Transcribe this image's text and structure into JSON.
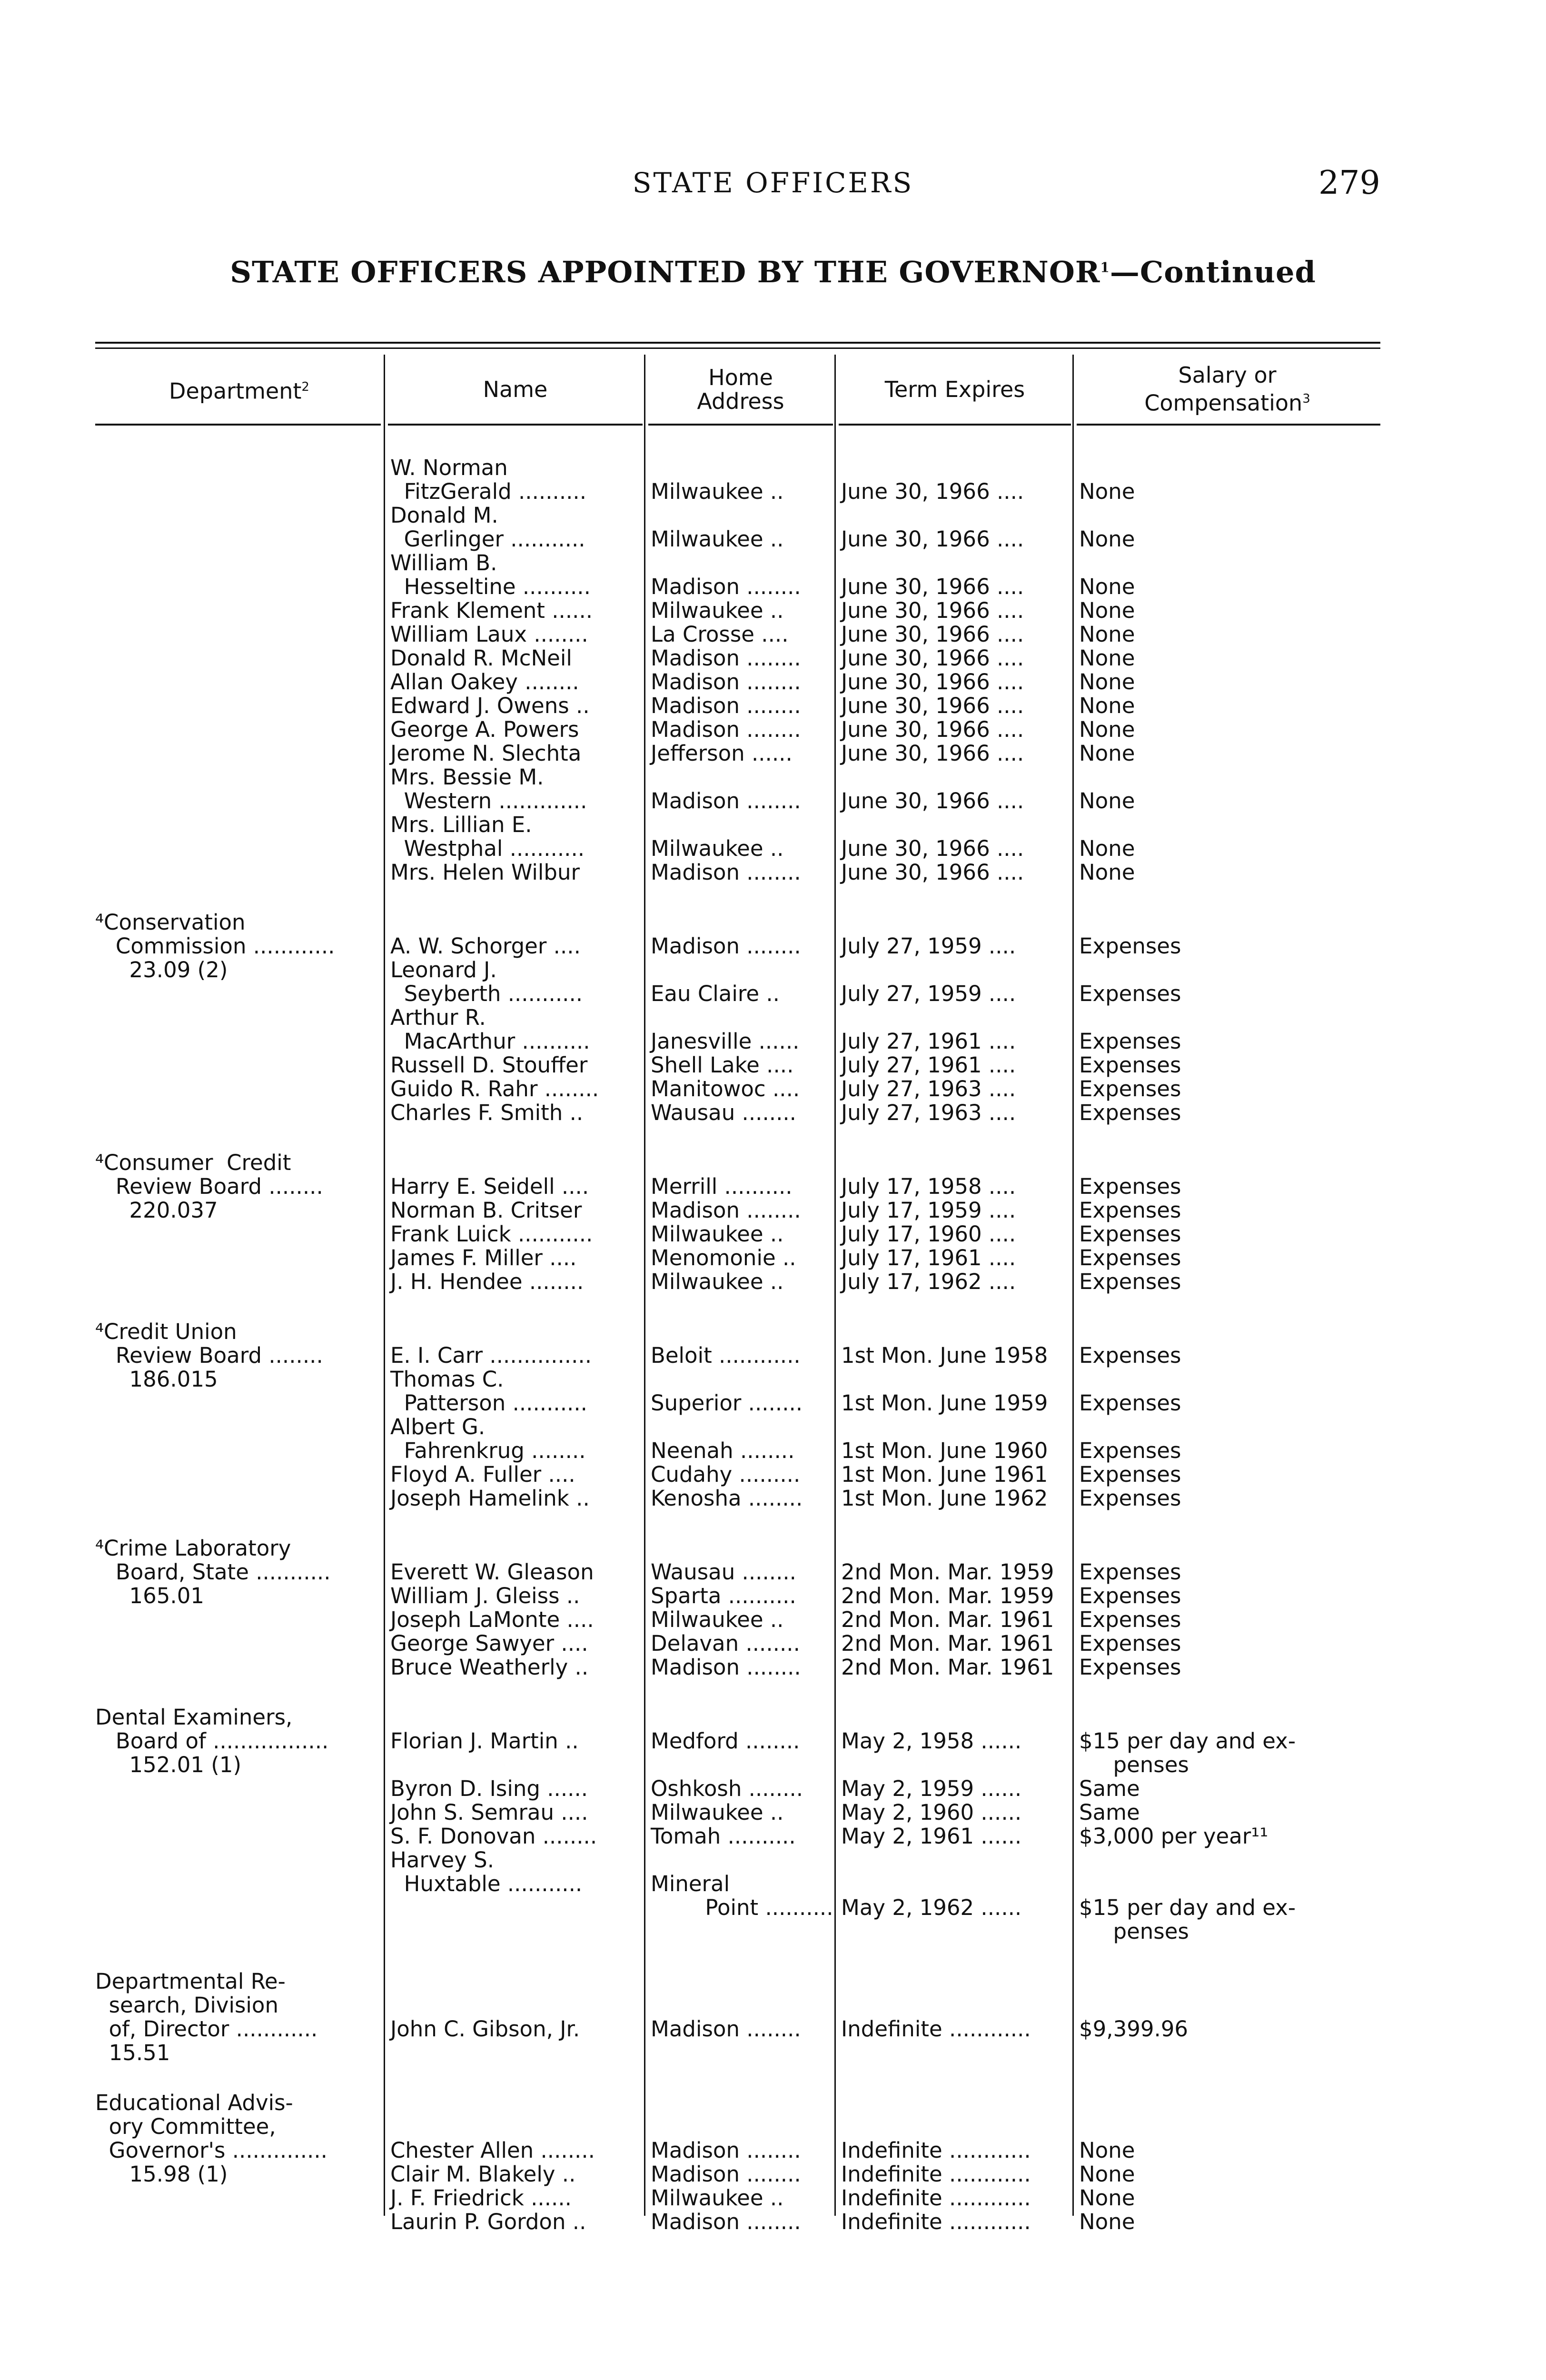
{
  "running_head": "STATE OFFICERS",
  "page_number": "279",
  "title": "STATE OFFICERS APPOINTED BY THE GOVERNOR",
  "title_footnote": "1",
  "title_suffix": "—Continued",
  "headers": {
    "department": "Department",
    "department_note": "2",
    "name": "Name",
    "home_address_1": "Home",
    "home_address_2": "Address",
    "term": "Term Expires",
    "salary_1": "Salary or",
    "salary_2": "Compensation",
    "salary_note": "3"
  },
  "groups": [
    {
      "lines": [
        [
          "",
          "W. Norman",
          "",
          "",
          ""
        ],
        [
          "",
          "  FitzGerald ..........",
          "Milwaukee ..",
          "June 30, 1966 ....",
          "None"
        ],
        [
          "",
          "Donald M.",
          "",
          "",
          ""
        ],
        [
          "",
          "  Gerlinger ...........",
          "Milwaukee ..",
          "June 30, 1966 ....",
          "None"
        ],
        [
          "",
          "William B.",
          "",
          "",
          ""
        ],
        [
          "",
          "  Hesseltine ..........",
          "Madison ........",
          "June 30, 1966 ....",
          "None"
        ],
        [
          "",
          "Frank Klement ......",
          "Milwaukee ..",
          "June 30, 1966 ....",
          "None"
        ],
        [
          "",
          "William Laux ........",
          "La Crosse ....",
          "June 30, 1966 ....",
          "None"
        ],
        [
          "",
          "Donald R. McNeil",
          "Madison ........",
          "June 30, 1966 ....",
          "None"
        ],
        [
          "",
          "Allan Oakey ........",
          "Madison ........",
          "June 30, 1966 ....",
          "None"
        ],
        [
          "",
          "Edward J. Owens ..",
          "Madison ........",
          "June 30, 1966 ....",
          "None"
        ],
        [
          "",
          "George A. Powers",
          "Madison ........",
          "June 30, 1966 ....",
          "None"
        ],
        [
          "",
          "Jerome N. Slechta",
          "Jefferson ......",
          "June 30, 1966 ....",
          "None"
        ],
        [
          "",
          "Mrs. Bessie M.",
          "",
          "",
          ""
        ],
        [
          "",
          "  Western .............",
          "Madison ........",
          "June 30, 1966 ....",
          "None"
        ],
        [
          "",
          "Mrs. Lillian E.",
          "",
          "",
          ""
        ],
        [
          "",
          "  Westphal ...........",
          "Milwaukee ..",
          "June 30, 1966 ....",
          "None"
        ],
        [
          "",
          "Mrs. Helen Wilbur",
          "Madison ........",
          "June 30, 1966 ....",
          "None"
        ]
      ]
    },
    {
      "lines": [
        [
          "⁴Conservation",
          "",
          "",
          "",
          ""
        ],
        [
          "   Commission ............",
          "A. W. Schorger ....",
          "Madison ........",
          "July 27, 1959 ....",
          "Expenses"
        ],
        [
          "     23.09 (2)",
          "Leonard J.",
          "",
          "",
          ""
        ],
        [
          "",
          "  Seyberth ...........",
          "Eau Claire ..",
          "July 27, 1959 ....",
          "Expenses"
        ],
        [
          "",
          "Arthur R.",
          "",
          "",
          ""
        ],
        [
          "",
          "  MacArthur ..........",
          "Janesville ......",
          "July 27, 1961 ....",
          "Expenses"
        ],
        [
          "",
          "Russell D. Stouffer",
          "Shell Lake ....",
          "July 27, 1961 ....",
          "Expenses"
        ],
        [
          "",
          "Guido R. Rahr ........",
          "Manitowoc ....",
          "July 27, 1963 ....",
          "Expenses"
        ],
        [
          "",
          "Charles F. Smith ..",
          "Wausau ........",
          "July 27, 1963 ....",
          "Expenses"
        ]
      ]
    },
    {
      "lines": [
        [
          "⁴Consumer  Credit",
          "",
          "",
          "",
          ""
        ],
        [
          "   Review Board ........",
          "Harry E. Seidell ....",
          "Merrill ..........",
          "July 17, 1958 ....",
          "Expenses"
        ],
        [
          "     220.037",
          "Norman B. Critser",
          "Madison ........",
          "July 17, 1959 ....",
          "Expenses"
        ],
        [
          "",
          "Frank Luick ...........",
          "Milwaukee ..",
          "July 17, 1960 ....",
          "Expenses"
        ],
        [
          "",
          "James F. Miller ....",
          "Menomonie ..",
          "July 17, 1961 ....",
          "Expenses"
        ],
        [
          "",
          "J. H. Hendee ........",
          "Milwaukee ..",
          "July 17, 1962 ....",
          "Expenses"
        ]
      ]
    },
    {
      "lines": [
        [
          "⁴Credit Union",
          "",
          "",
          "",
          ""
        ],
        [
          "   Review Board ........",
          "E. I. Carr ...............",
          "Beloit ............",
          "1st Mon. June 1958",
          "Expenses"
        ],
        [
          "     186.015",
          "Thomas C.",
          "",
          "",
          ""
        ],
        [
          "",
          "  Patterson ...........",
          "Superior ........",
          "1st Mon. June 1959",
          "Expenses"
        ],
        [
          "",
          "Albert G.",
          "",
          "",
          ""
        ],
        [
          "",
          "  Fahrenkrug ........",
          "Neenah ........",
          "1st Mon. June 1960",
          "Expenses"
        ],
        [
          "",
          "Floyd A. Fuller ....",
          "Cudahy .........",
          "1st Mon. June 1961",
          "Expenses"
        ],
        [
          "",
          "Joseph Hamelink ..",
          "Kenosha ........",
          "1st Mon. June 1962",
          "Expenses"
        ]
      ]
    },
    {
      "lines": [
        [
          "⁴Crime Laboratory",
          "",
          "",
          "",
          ""
        ],
        [
          "   Board, State ...........",
          "Everett W. Gleason",
          "Wausau ........",
          "2nd Mon. Mar. 1959",
          "Expenses"
        ],
        [
          "     165.01",
          "William J. Gleiss ..",
          "Sparta ..........",
          "2nd Mon. Mar. 1959",
          "Expenses"
        ],
        [
          "",
          "Joseph LaMonte ....",
          "Milwaukee ..",
          "2nd Mon. Mar. 1961",
          "Expenses"
        ],
        [
          "",
          "George Sawyer ....",
          "Delavan ........",
          "2nd Mon. Mar. 1961",
          "Expenses"
        ],
        [
          "",
          "Bruce Weatherly ..",
          "Madison ........",
          "2nd Mon. Mar. 1961",
          "Expenses"
        ]
      ]
    },
    {
      "lines": [
        [
          "Dental Examiners,",
          "",
          "",
          "",
          ""
        ],
        [
          "   Board of .................",
          "Florian J. Martin ..",
          "Medford ........",
          "May 2, 1958 ......",
          "$15 per day and ex-"
        ],
        [
          "     152.01 (1)",
          "",
          "",
          "",
          "     penses"
        ],
        [
          "",
          "Byron D. Ising ......",
          "Oshkosh ........",
          "May 2, 1959 ......",
          "Same"
        ],
        [
          "",
          "John S. Semrau ....",
          "Milwaukee ..",
          "May 2, 1960 ......",
          "Same"
        ],
        [
          "",
          "S. F. Donovan ........",
          "Tomah ..........",
          "May 2, 1961 ......",
          "$3,000 per year¹¹"
        ],
        [
          "",
          "Harvey S.",
          "",
          "",
          ""
        ],
        [
          "",
          "  Huxtable ...........",
          "Mineral",
          "",
          ""
        ],
        [
          "",
          "",
          "        Point ..........",
          "May 2, 1962 ......",
          "$15 per day and ex-"
        ],
        [
          "",
          "",
          "",
          "",
          "     penses"
        ]
      ]
    },
    {
      "lines": [
        [
          "Departmental Re-",
          "",
          "",
          "",
          ""
        ],
        [
          "  search, Division",
          "",
          "",
          "",
          ""
        ],
        [
          "  of, Director ............",
          "John C. Gibson, Jr.",
          "Madison ........",
          "Indefinite ............",
          "$9,399.96"
        ],
        [
          "  15.51",
          "",
          "",
          "",
          ""
        ]
      ]
    },
    {
      "lines": [
        [
          "Educational Advis-",
          "",
          "",
          "",
          ""
        ],
        [
          "  ory Committee,",
          "",
          "",
          "",
          ""
        ],
        [
          "  Governor's ..............",
          "Chester Allen ........",
          "Madison ........",
          "Indefinite ............",
          "None"
        ],
        [
          "     15.98 (1)",
          "Clair M. Blakely ..",
          "Madison ........",
          "Indefinite ............",
          "None"
        ],
        [
          "",
          "J. F. Friedrick ......",
          "Milwaukee ..",
          "Indefinite ............",
          "None"
        ],
        [
          "",
          "Laurin P. Gordon ..",
          "Madison ........",
          "Indefinite ............",
          "None"
        ]
      ]
    }
  ]
}
